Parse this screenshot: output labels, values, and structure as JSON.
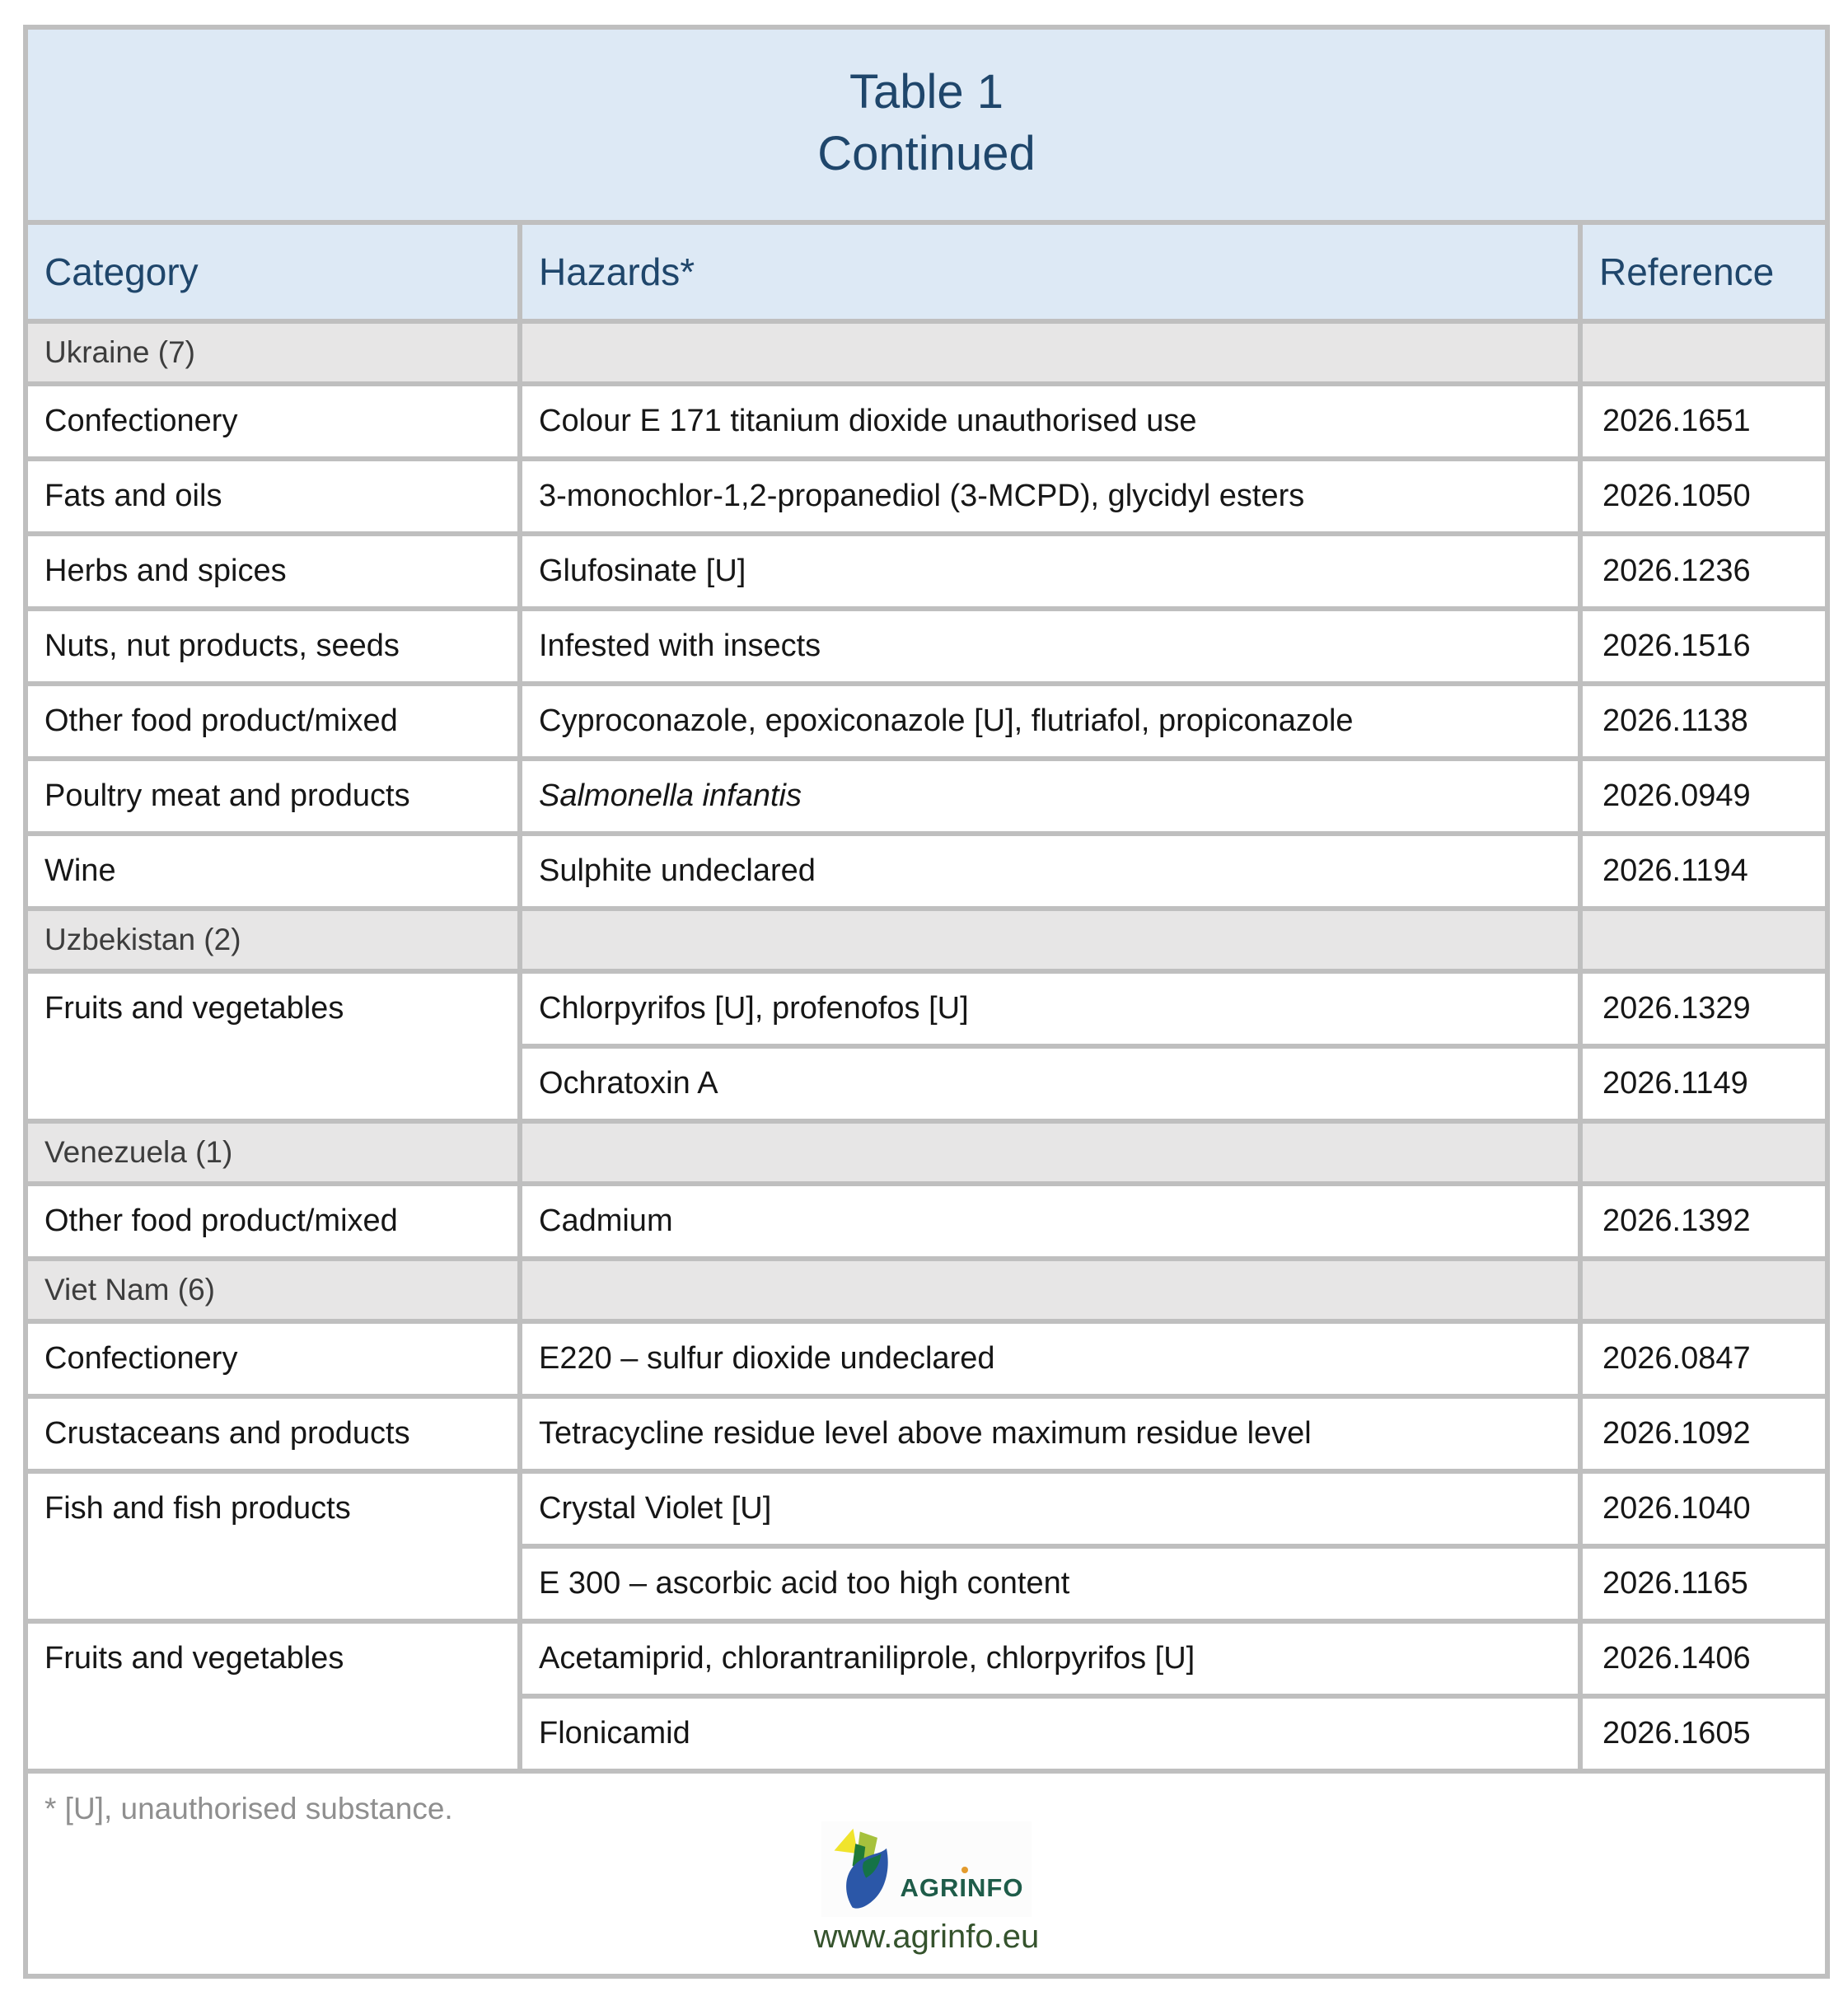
{
  "table": {
    "title_line1": "Table 1",
    "title_line2": "Continued",
    "columns": [
      {
        "label": "Category"
      },
      {
        "label": "Hazards*"
      },
      {
        "label": "Reference"
      }
    ],
    "sections": [
      {
        "label": "Ukraine (7)",
        "groups": [
          {
            "category": "Confectionery",
            "rows": [
              {
                "hazard": "Colour E 171 titanium dioxide unauthorised use",
                "reference": "2026.1651"
              }
            ]
          },
          {
            "category": "Fats and oils",
            "rows": [
              {
                "hazard": "3-monochlor-1,2-propanediol (3-MCPD), glycidyl esters",
                "reference": "2026.1050"
              }
            ]
          },
          {
            "category": "Herbs and spices",
            "rows": [
              {
                "hazard": "Glufosinate [U]",
                "reference": "2026.1236"
              }
            ]
          },
          {
            "category": "Nuts, nut products, seeds",
            "rows": [
              {
                "hazard": "Infested with insects",
                "reference": "2026.1516"
              }
            ]
          },
          {
            "category": "Other food product/mixed",
            "rows": [
              {
                "hazard": "Cyproconazole, epoxiconazole [U], flutriafol, propiconazole",
                "reference": "2026.1138"
              }
            ]
          },
          {
            "category": "Poultry meat and products",
            "rows": [
              {
                "hazard": "Salmonella infantis",
                "italic": true,
                "reference": "2026.0949"
              }
            ]
          },
          {
            "category": "Wine",
            "rows": [
              {
                "hazard": "Sulphite undeclared",
                "reference": "2026.1194"
              }
            ]
          }
        ]
      },
      {
        "label": "Uzbekistan (2)",
        "groups": [
          {
            "category": "Fruits and vegetables",
            "rows": [
              {
                "hazard": "Chlorpyrifos [U], profenofos [U]",
                "reference": "2026.1329"
              },
              {
                "hazard": "Ochratoxin A",
                "reference": "2026.1149"
              }
            ]
          }
        ]
      },
      {
        "label": "Venezuela (1)",
        "groups": [
          {
            "category": "Other food product/mixed",
            "rows": [
              {
                "hazard": "Cadmium",
                "reference": "2026.1392"
              }
            ]
          }
        ]
      },
      {
        "label": "Viet Nam (6)",
        "groups": [
          {
            "category": "Confectionery",
            "rows": [
              {
                "hazard": "E220 – sulfur dioxide undeclared",
                "reference": "2026.0847"
              }
            ]
          },
          {
            "category": "Crustaceans and products",
            "rows": [
              {
                "hazard": "Tetracycline residue level above maximum residue level",
                "reference": "2026.1092"
              }
            ]
          },
          {
            "category": "Fish and fish products",
            "rows": [
              {
                "hazard": "Crystal Violet [U]",
                "reference": "2026.1040"
              },
              {
                "hazard": "E 300 – ascorbic acid too high content",
                "reference": "2026.1165"
              }
            ]
          },
          {
            "category": "Fruits and vegetables",
            "rows": [
              {
                "hazard": "Acetamiprid, chlorantraniliprole, chlorpyrifos [U]",
                "reference": "2026.1406"
              },
              {
                "hazard": "Flonicamid",
                "reference": "2026.1605"
              }
            ]
          }
        ]
      }
    ],
    "footnote": "* [U], unauthorised substance."
  },
  "footer_logo": {
    "brand": "AGRINFO",
    "url": "www.agrinfo.eu"
  },
  "colors": {
    "header_bg": "#dde9f5",
    "header_text": "#1f466b",
    "section_bg": "#e7e6e6",
    "section_text": "#3d3d3d",
    "body_text": "#161616",
    "border": "#bfbfbf",
    "footnote_text": "#8f8f8f",
    "brand_green": "#1e5c49",
    "url_green": "#35532d",
    "logo_yellow": "#f0e42c",
    "logo_light_green": "#a6c13d",
    "logo_dark_green": "#1f7a36",
    "logo_blue": "#2b57a8",
    "logo_dot_orange": "#e39b2d"
  }
}
